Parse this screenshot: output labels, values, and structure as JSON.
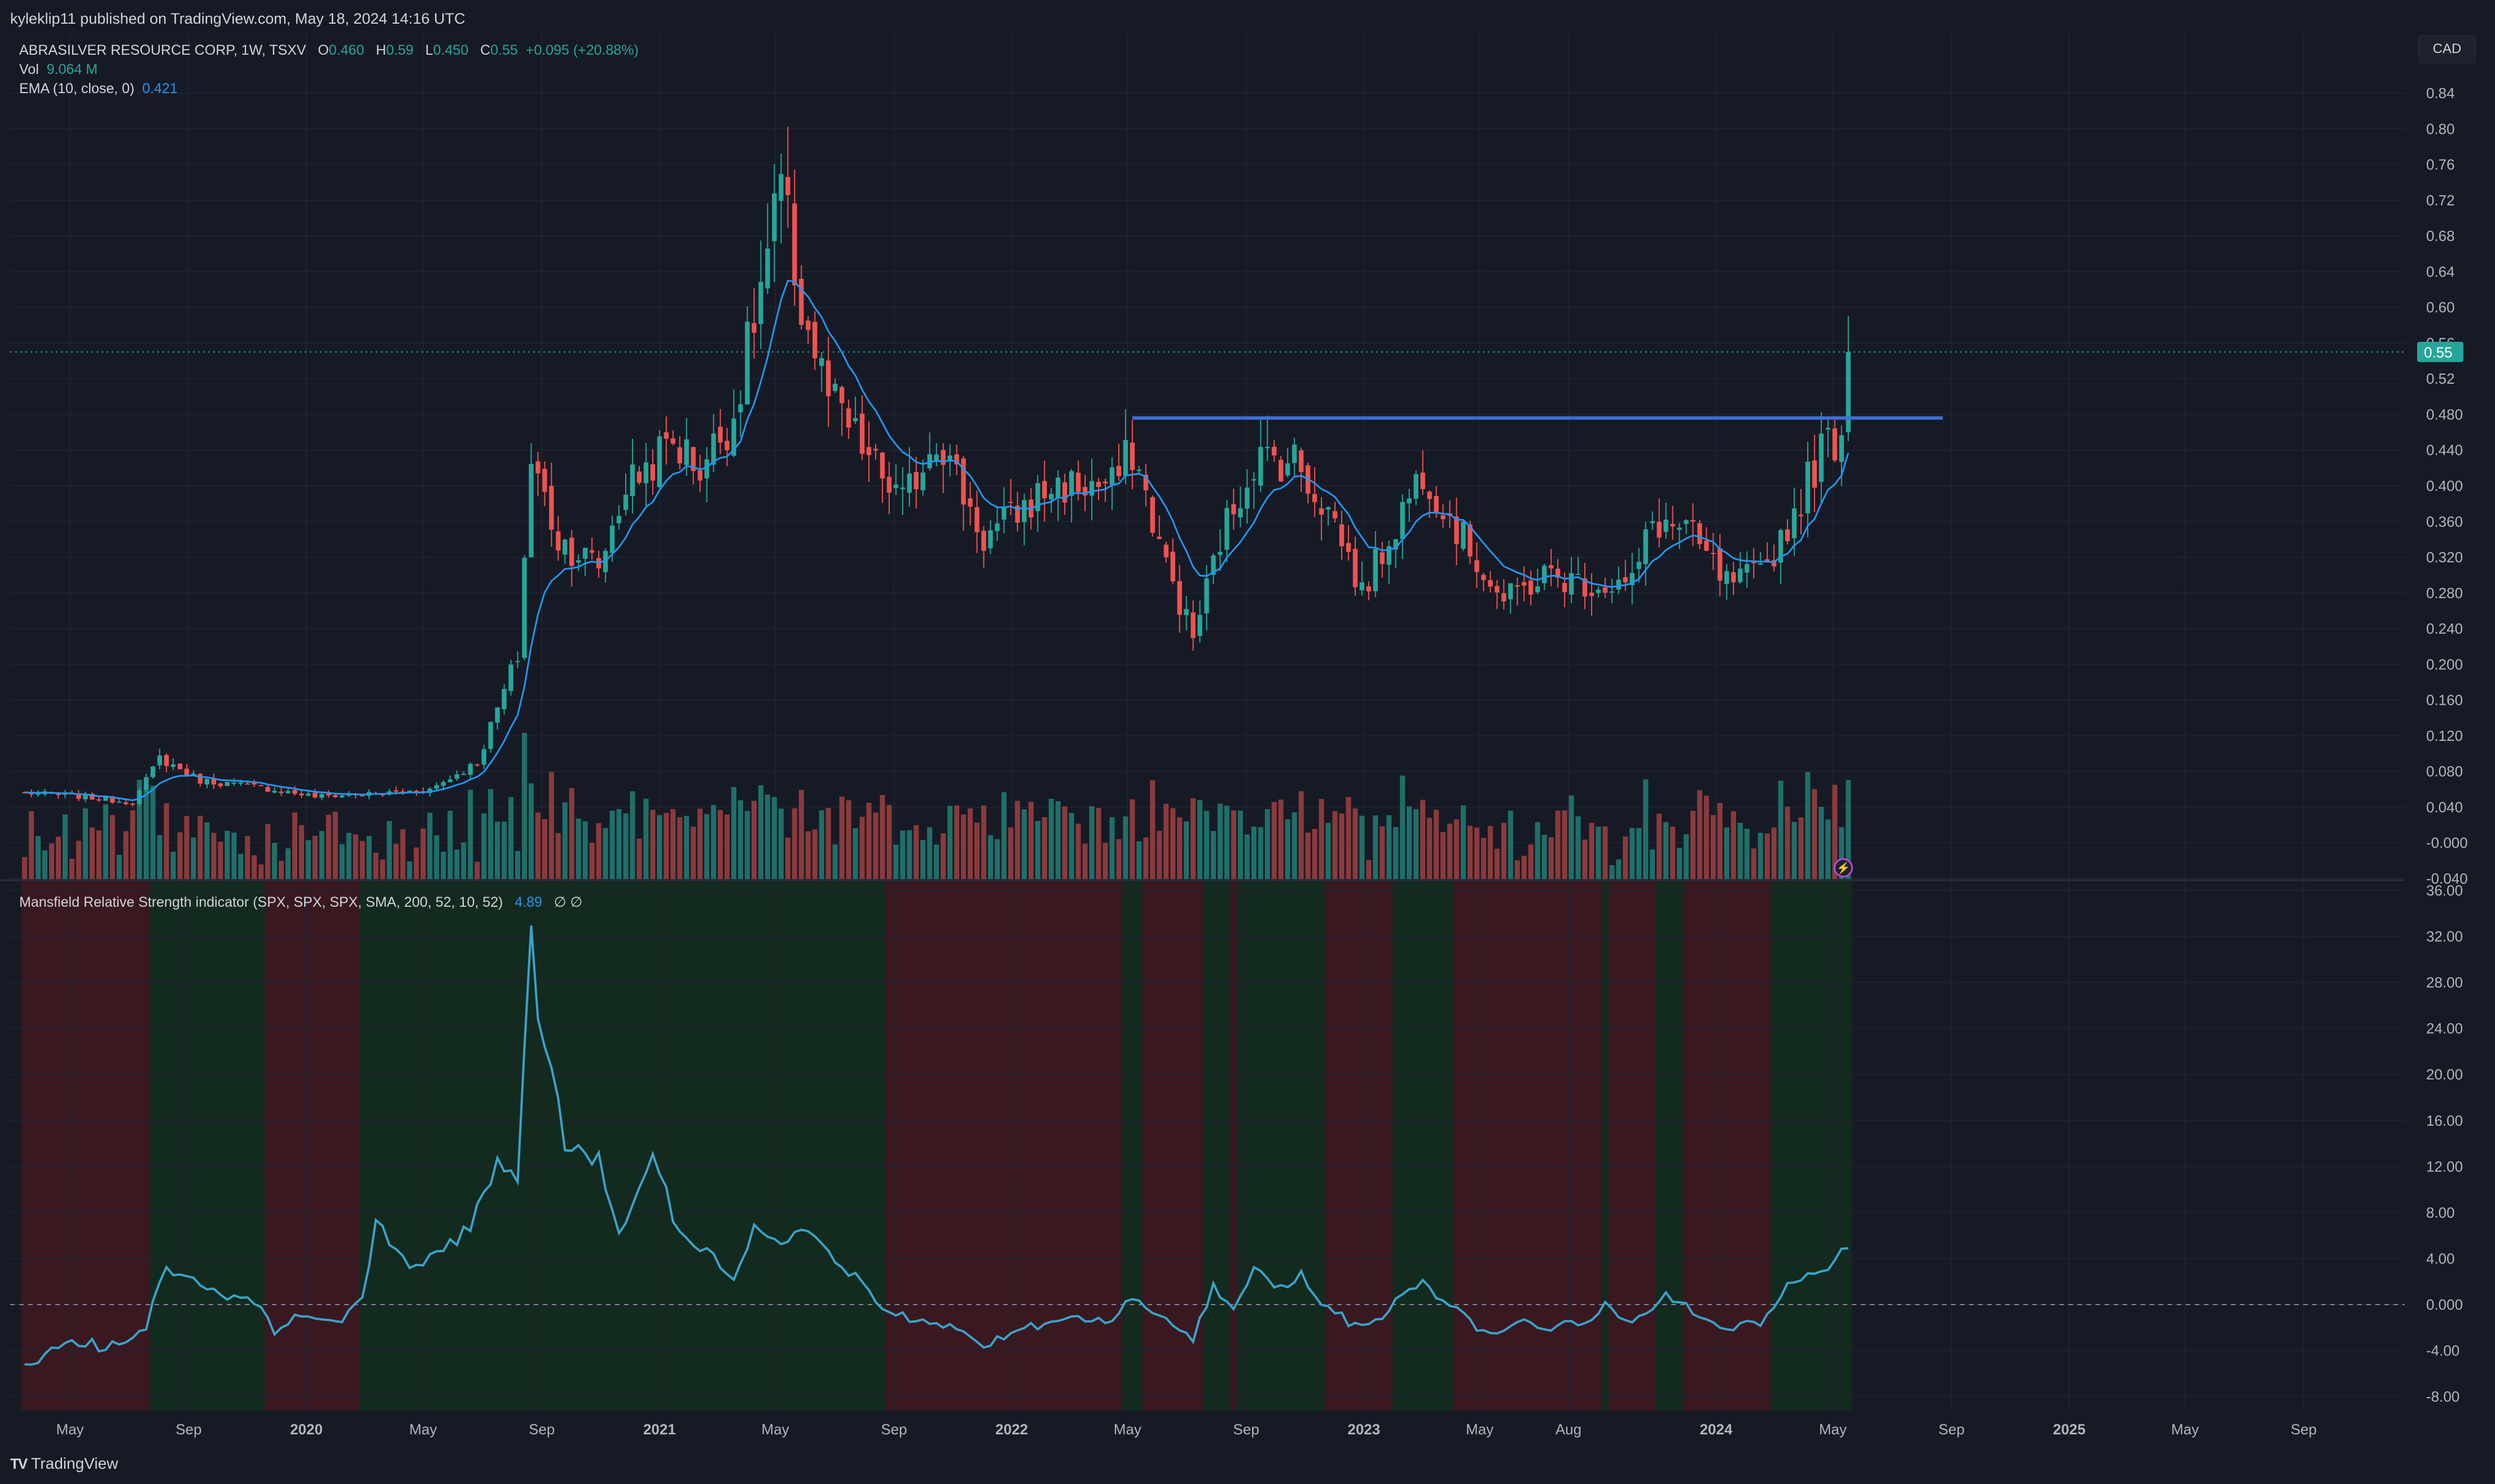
{
  "publisher_line": "kyleklip11 published on TradingView.com, May 18, 2024 14:16 UTC",
  "legend": {
    "symbol": "ABRASILVER RESOURCE CORP, 1W, TSXV",
    "o_label": "O",
    "o_value": "0.460",
    "h_label": "H",
    "h_value": "0.59",
    "l_label": "L",
    "l_value": "0.450",
    "c_label": "C",
    "c_value": "0.55",
    "change": "+0.095 (+20.88%)",
    "vol_label": "Vol",
    "vol_value": "9.064 M",
    "ema_label": "EMA (10, close, 0)",
    "ema_value": "0.421"
  },
  "mrs_legend": {
    "label": "Mansfield Relative Strength indicator (SPX, SPX, SPX, SMA, 200, 52, 10, 52)",
    "value": "4.89",
    "symbols": "∅  ∅"
  },
  "currency_button": "CAD",
  "brand": "TradingView",
  "icons": [
    "tradingview-logo-icon",
    "lightning-icon"
  ],
  "colors": {
    "up": "#26a69a",
    "down": "#ef5350",
    "ema": "#2196f3",
    "resistance": "#3d6fd9",
    "mrs_line": "#3aa3c9",
    "mrs_bg_pos": "#132a1e",
    "mrs_bg_neg": "#3a1820",
    "background": "#161a25",
    "last_price_label": "#26a69a"
  },
  "chart_data": [
    {
      "type": "candlestick",
      "title": "ABRASILVER RESOURCE CORP, 1W, TSXV",
      "interval": "1W",
      "start": "2019-03-15",
      "last_bar": "2024-05-17",
      "y_axis": {
        "ticks": [
          "0.84",
          "0.80",
          "0.76",
          "0.72",
          "0.68",
          "0.64",
          "0.60",
          "0.56",
          "0.52",
          "0.480",
          "0.440",
          "0.400",
          "0.360",
          "0.320",
          "0.280",
          "0.240",
          "0.200",
          "0.160",
          "0.120",
          "0.080",
          "0.040",
          "-0.000",
          "-0.040"
        ],
        "range": [
          -0.04,
          0.86
        ]
      },
      "last_price_label": "0.55",
      "anchors_close": [
        [
          "2019-03-15",
          0.056
        ],
        [
          "2019-05-10",
          0.052
        ],
        [
          "2019-07-05",
          0.045
        ],
        [
          "2019-08-02",
          0.095
        ],
        [
          "2019-09-13",
          0.07
        ],
        [
          "2019-11-15",
          0.062
        ],
        [
          "2020-01-10",
          0.052
        ],
        [
          "2020-03-13",
          0.055
        ],
        [
          "2020-05-08",
          0.06
        ],
        [
          "2020-06-26",
          0.09
        ],
        [
          "2020-08-07",
          0.21
        ],
        [
          "2020-08-21",
          0.43
        ],
        [
          "2020-09-18",
          0.34
        ],
        [
          "2020-10-30",
          0.31
        ],
        [
          "2020-11-27",
          0.4
        ],
        [
          "2021-01-15",
          0.45
        ],
        [
          "2021-02-12",
          0.42
        ],
        [
          "2021-03-19",
          0.48
        ],
        [
          "2021-05-07",
          0.73
        ],
        [
          "2021-05-28",
          0.6
        ],
        [
          "2021-06-25",
          0.5
        ],
        [
          "2021-08-06",
          0.43
        ],
        [
          "2021-09-10",
          0.38
        ],
        [
          "2021-10-15",
          0.46
        ],
        [
          "2021-12-03",
          0.34
        ],
        [
          "2022-02-11",
          0.4
        ],
        [
          "2022-04-15",
          0.4
        ],
        [
          "2022-05-06",
          0.44
        ],
        [
          "2022-06-10",
          0.31
        ],
        [
          "2022-07-08",
          0.23
        ],
        [
          "2022-08-05",
          0.34
        ],
        [
          "2022-09-09",
          0.43
        ],
        [
          "2022-10-21",
          0.43
        ],
        [
          "2022-12-02",
          0.36
        ],
        [
          "2022-12-30",
          0.28
        ],
        [
          "2023-03-03",
          0.42
        ],
        [
          "2023-04-14",
          0.34
        ],
        [
          "2023-05-26",
          0.27
        ],
        [
          "2023-07-07",
          0.3
        ],
        [
          "2023-08-25",
          0.29
        ],
        [
          "2023-10-06",
          0.29
        ],
        [
          "2023-10-27",
          0.36
        ],
        [
          "2023-12-01",
          0.35
        ],
        [
          "2024-01-12",
          0.29
        ],
        [
          "2024-02-16",
          0.3
        ],
        [
          "2024-03-22",
          0.37
        ],
        [
          "2024-04-19",
          0.44
        ],
        [
          "2024-05-10",
          0.46
        ],
        [
          "2024-05-17",
          0.55
        ]
      ],
      "last_bar_ohlc": {
        "open": 0.46,
        "high": 0.59,
        "low": 0.45,
        "close": 0.55
      },
      "resistance_line": {
        "from": "2022-05-06",
        "to": "2024-08-23",
        "value": 0.476
      },
      "series": [
        {
          "name": "EMA (10, close, 0)",
          "last": 0.421
        },
        {
          "name": "Vol",
          "last": "9.064 M"
        }
      ]
    },
    {
      "type": "area",
      "title": "Mansfield Relative Strength indicator (SPX, SPX, SPX, SMA, 200, 52, 10, 52)",
      "y_axis": {
        "ticks": [
          "36.00",
          "32.00",
          "28.00",
          "24.00",
          "20.00",
          "16.00",
          "12.00",
          "8.00",
          "4.00",
          "0.000",
          "-4.00",
          "-8.00"
        ],
        "range": [
          -9.5,
          36.5
        ]
      },
      "zero_line": "dashed",
      "anchors": [
        [
          "2019-03-15",
          -5.5
        ],
        [
          "2019-04-26",
          -3.5
        ],
        [
          "2019-06-21",
          -3.5
        ],
        [
          "2019-07-19",
          -2.5
        ],
        [
          "2019-07-26",
          0.5
        ],
        [
          "2019-08-09",
          3.0
        ],
        [
          "2019-09-13",
          2.0
        ],
        [
          "2019-10-04",
          0.5
        ],
        [
          "2019-10-25",
          1.0
        ],
        [
          "2019-11-15",
          0.0
        ],
        [
          "2019-11-29",
          -2.5
        ],
        [
          "2019-12-20",
          -1.0
        ],
        [
          "2020-02-07",
          -1.5
        ],
        [
          "2020-02-28",
          0.3
        ],
        [
          "2020-03-13",
          7.0
        ],
        [
          "2020-04-17",
          3.0
        ],
        [
          "2020-05-22",
          5.0
        ],
        [
          "2020-06-19",
          6.5
        ],
        [
          "2020-07-17",
          13.0
        ],
        [
          "2020-08-07",
          10.0
        ],
        [
          "2020-08-21",
          32.0
        ],
        [
          "2020-09-04",
          22.5
        ],
        [
          "2020-09-25",
          14.0
        ],
        [
          "2020-10-30",
          12.0
        ],
        [
          "2020-11-20",
          7.0
        ],
        [
          "2020-12-11",
          9.5
        ],
        [
          "2020-12-25",
          13.0
        ],
        [
          "2021-01-22",
          6.0
        ],
        [
          "2021-02-26",
          4.0
        ],
        [
          "2021-03-19",
          2.0
        ],
        [
          "2021-04-09",
          7.0
        ],
        [
          "2021-05-07",
          5.0
        ],
        [
          "2021-06-04",
          6.5
        ],
        [
          "2021-07-02",
          4.0
        ],
        [
          "2021-07-23",
          2.5
        ],
        [
          "2021-08-06",
          1.0
        ],
        [
          "2021-08-20",
          0.0
        ],
        [
          "2021-09-10",
          -1.0
        ],
        [
          "2021-10-08",
          -1.5
        ],
        [
          "2021-11-05",
          -2.0
        ],
        [
          "2021-12-03",
          -3.5
        ],
        [
          "2022-01-07",
          -2.5
        ],
        [
          "2022-02-04",
          -1.5
        ],
        [
          "2022-03-04",
          -1.0
        ],
        [
          "2022-04-08",
          -1.5
        ],
        [
          "2022-05-06",
          0.5
        ],
        [
          "2022-06-03",
          -1.0
        ],
        [
          "2022-07-08",
          -3.0
        ],
        [
          "2022-07-29",
          1.5
        ],
        [
          "2022-08-19",
          -0.5
        ],
        [
          "2022-09-09",
          3.0
        ],
        [
          "2022-10-07",
          1.5
        ],
        [
          "2022-10-28",
          2.5
        ],
        [
          "2022-11-18",
          0.0
        ],
        [
          "2022-12-16",
          -1.5
        ],
        [
          "2023-01-13",
          -1.5
        ],
        [
          "2023-02-03",
          0.5
        ],
        [
          "2023-03-03",
          2.0
        ],
        [
          "2023-03-31",
          0.0
        ],
        [
          "2023-05-05",
          -2.5
        ],
        [
          "2023-06-09",
          -1.5
        ],
        [
          "2023-07-14",
          -2.0
        ],
        [
          "2023-08-25",
          -1.5
        ],
        [
          "2023-09-08",
          0.0
        ],
        [
          "2023-09-29",
          -1.5
        ],
        [
          "2023-10-27",
          -0.5
        ],
        [
          "2023-11-10",
          1.0
        ],
        [
          "2023-12-08",
          -0.5
        ],
        [
          "2024-01-12",
          -2.0
        ],
        [
          "2024-02-16",
          -1.5
        ],
        [
          "2024-03-15",
          1.5
        ],
        [
          "2024-04-19",
          3.0
        ],
        [
          "2024-05-17",
          4.89
        ]
      ],
      "last_value": 4.89,
      "background": "green above zero, red below zero"
    }
  ],
  "x_axis": {
    "labels": [
      {
        "text": "May",
        "date": "2019-05-01",
        "bold": false
      },
      {
        "text": "Sep",
        "date": "2019-09-01",
        "bold": false
      },
      {
        "text": "2020",
        "date": "2020-01-01",
        "bold": true
      },
      {
        "text": "May",
        "date": "2020-05-01",
        "bold": false
      },
      {
        "text": "Sep",
        "date": "2020-09-01",
        "bold": false
      },
      {
        "text": "2021",
        "date": "2021-01-01",
        "bold": true
      },
      {
        "text": "May",
        "date": "2021-05-01",
        "bold": false
      },
      {
        "text": "Sep",
        "date": "2021-09-01",
        "bold": false
      },
      {
        "text": "2022",
        "date": "2022-01-01",
        "bold": true
      },
      {
        "text": "May",
        "date": "2022-05-01",
        "bold": false
      },
      {
        "text": "Sep",
        "date": "2022-09-01",
        "bold": false
      },
      {
        "text": "2023",
        "date": "2023-01-01",
        "bold": true
      },
      {
        "text": "May",
        "date": "2023-05-01",
        "bold": false
      },
      {
        "text": "Aug",
        "date": "2023-08-01",
        "bold": false
      },
      {
        "text": "2024",
        "date": "2024-01-01",
        "bold": true
      },
      {
        "text": "May",
        "date": "2024-05-01",
        "bold": false
      },
      {
        "text": "Sep",
        "date": "2024-09-01",
        "bold": false
      },
      {
        "text": "2025",
        "date": "2025-01-01",
        "bold": true
      },
      {
        "text": "May",
        "date": "2025-05-01",
        "bold": false
      },
      {
        "text": "Sep",
        "date": "2025-09-01",
        "bold": false
      }
    ]
  }
}
